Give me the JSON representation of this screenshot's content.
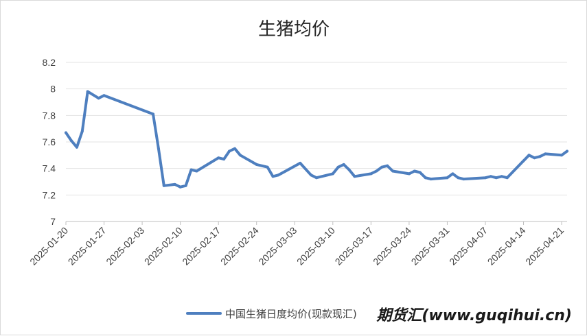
{
  "chart_data": {
    "type": "line",
    "title": "生猪均价",
    "xlabel": "",
    "ylabel": "",
    "ylim": [
      7,
      8.2
    ],
    "y_ticks": [
      "7",
      "7.2",
      "7.4",
      "7.6",
      "7.8",
      "8",
      "8.2"
    ],
    "x_ticks": [
      "2025-01-20",
      "2025-01-27",
      "2025-02-03",
      "2025-02-10",
      "2025-02-17",
      "2025-02-24",
      "2025-03-03",
      "2025-03-10",
      "2025-03-17",
      "2025-03-24",
      "2025-03-31",
      "2025-04-07",
      "2025-04-14",
      "2025-04-21"
    ],
    "grid": "horizontal",
    "legend_position": "bottom",
    "color": "#4e7fbf",
    "series": [
      {
        "name": "中国生猪日度均价(现款现汇)",
        "points": [
          [
            "2025-01-20",
            7.67
          ],
          [
            "2025-01-21",
            7.61
          ],
          [
            "2025-01-22",
            7.56
          ],
          [
            "2025-01-23",
            7.68
          ],
          [
            "2025-01-24",
            7.98
          ],
          [
            "2025-01-26",
            7.93
          ],
          [
            "2025-01-27",
            7.95
          ],
          [
            "2025-02-05",
            7.81
          ],
          [
            "2025-02-06",
            7.55
          ],
          [
            "2025-02-07",
            7.27
          ],
          [
            "2025-02-09",
            7.28
          ],
          [
            "2025-02-10",
            7.26
          ],
          [
            "2025-02-11",
            7.27
          ],
          [
            "2025-02-12",
            7.39
          ],
          [
            "2025-02-13",
            7.38
          ],
          [
            "2025-02-17",
            7.48
          ],
          [
            "2025-02-18",
            7.47
          ],
          [
            "2025-02-19",
            7.53
          ],
          [
            "2025-02-20",
            7.55
          ],
          [
            "2025-02-21",
            7.5
          ],
          [
            "2025-02-24",
            7.43
          ],
          [
            "2025-02-26",
            7.41
          ],
          [
            "2025-02-27",
            7.34
          ],
          [
            "2025-02-28",
            7.35
          ],
          [
            "2025-03-04",
            7.44
          ],
          [
            "2025-03-06",
            7.35
          ],
          [
            "2025-03-07",
            7.33
          ],
          [
            "2025-03-10",
            7.36
          ],
          [
            "2025-03-11",
            7.41
          ],
          [
            "2025-03-12",
            7.43
          ],
          [
            "2025-03-13",
            7.39
          ],
          [
            "2025-03-14",
            7.34
          ],
          [
            "2025-03-17",
            7.36
          ],
          [
            "2025-03-18",
            7.38
          ],
          [
            "2025-03-19",
            7.41
          ],
          [
            "2025-03-20",
            7.42
          ],
          [
            "2025-03-21",
            7.38
          ],
          [
            "2025-03-24",
            7.36
          ],
          [
            "2025-03-25",
            7.38
          ],
          [
            "2025-03-26",
            7.37
          ],
          [
            "2025-03-27",
            7.33
          ],
          [
            "2025-03-28",
            7.32
          ],
          [
            "2025-03-31",
            7.33
          ],
          [
            "2025-04-01",
            7.36
          ],
          [
            "2025-04-02",
            7.33
          ],
          [
            "2025-04-03",
            7.32
          ],
          [
            "2025-04-07",
            7.33
          ],
          [
            "2025-04-08",
            7.34
          ],
          [
            "2025-04-09",
            7.33
          ],
          [
            "2025-04-10",
            7.34
          ],
          [
            "2025-04-11",
            7.33
          ],
          [
            "2025-04-15",
            7.5
          ],
          [
            "2025-04-16",
            7.48
          ],
          [
            "2025-04-17",
            7.49
          ],
          [
            "2025-04-18",
            7.51
          ],
          [
            "2025-04-21",
            7.5
          ],
          [
            "2025-04-22",
            7.53
          ]
        ]
      }
    ]
  },
  "watermark": "期货汇(www.guqihui.cn)"
}
